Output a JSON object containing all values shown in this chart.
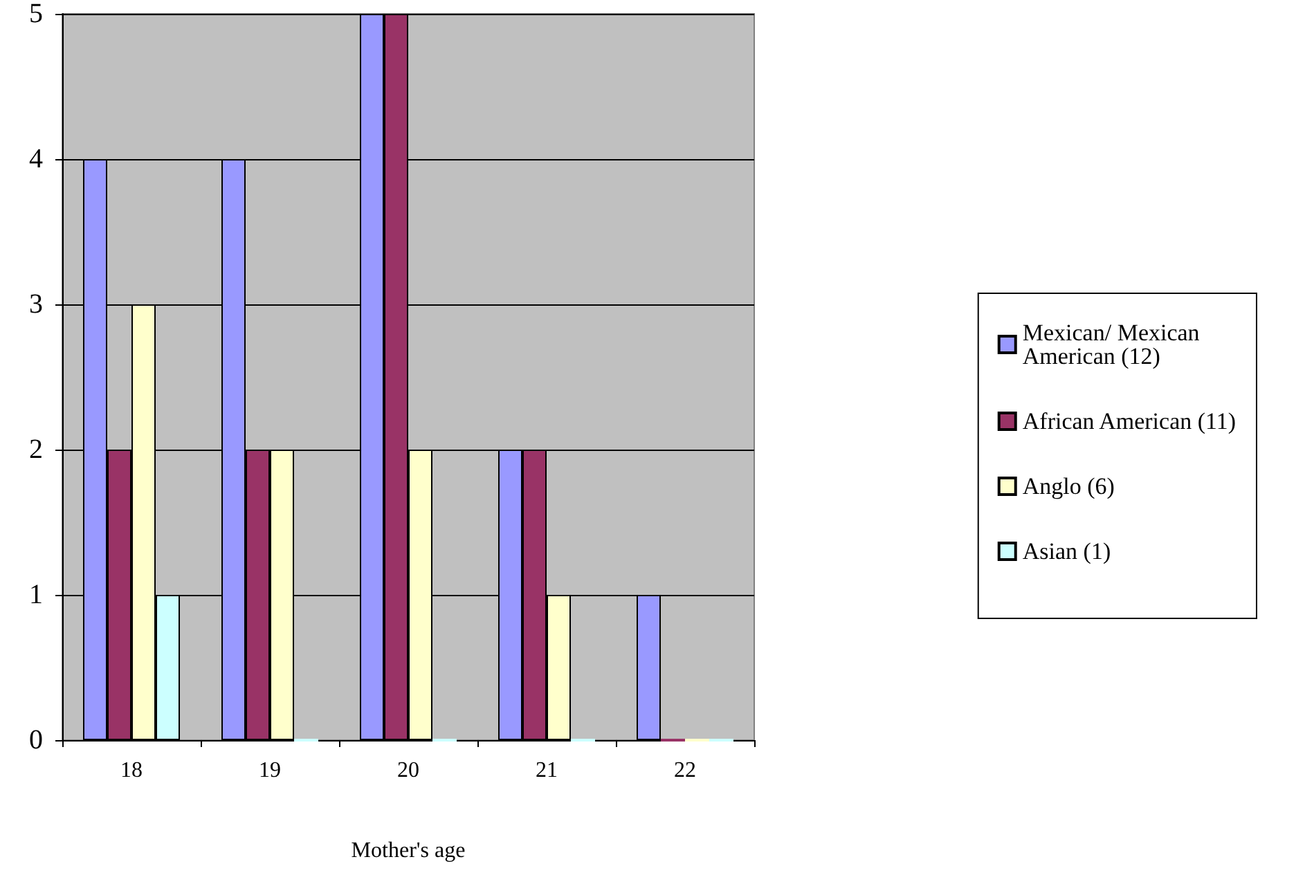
{
  "chart_data": {
    "type": "bar",
    "xlabel": "Mother's age",
    "categories": [
      "18",
      "19",
      "20",
      "21",
      "22"
    ],
    "series": [
      {
        "name": "Mexican/ Mexican American (12)",
        "color": "#9999ff",
        "values": [
          4,
          4,
          5,
          2,
          1
        ]
      },
      {
        "name": "African American (11)",
        "color": "#993366",
        "values": [
          2,
          2,
          5,
          2,
          0
        ]
      },
      {
        "name": "Anglo (6)",
        "color": "#ffffcc",
        "values": [
          3,
          2,
          2,
          1,
          0
        ]
      },
      {
        "name": "Asian (1)",
        "color": "#ccffff",
        "values": [
          1,
          0,
          0,
          0,
          0
        ]
      }
    ],
    "ylim": [
      0,
      5
    ],
    "yticks": [
      0,
      1,
      2,
      3,
      4,
      5
    ],
    "grid": "y",
    "legend": "right"
  }
}
